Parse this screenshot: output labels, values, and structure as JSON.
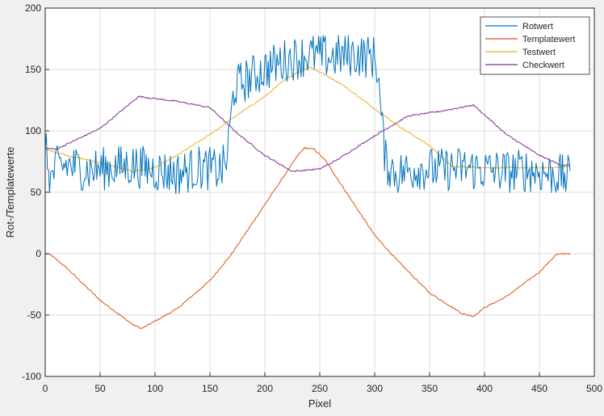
{
  "chart_data": {
    "type": "line",
    "title": "",
    "xlabel": "Pixel",
    "ylabel": "Rot-/Templatewerte",
    "xlim": [
      0,
      500
    ],
    "ylim": [
      -100,
      200
    ],
    "xticks": [
      0,
      50,
      100,
      150,
      200,
      250,
      300,
      350,
      400,
      450,
      500
    ],
    "yticks": [
      -100,
      -50,
      0,
      50,
      100,
      150,
      200
    ],
    "grid": true,
    "legend_position": "top-right",
    "series": [
      {
        "name": "Rotwert",
        "color": "#0072bd",
        "style": "noisy",
        "noise_amplitude": 18,
        "x": [
          0,
          5,
          10,
          20,
          40,
          60,
          80,
          100,
          120,
          140,
          160,
          165,
          168,
          172,
          180,
          200,
          220,
          240,
          260,
          280,
          300,
          303,
          306,
          310,
          320,
          340,
          360,
          380,
          400,
          420,
          440,
          460,
          478
        ],
        "y": [
          85,
          60,
          70,
          72,
          68,
          70,
          72,
          68,
          65,
          70,
          68,
          75,
          100,
          135,
          140,
          150,
          158,
          162,
          160,
          162,
          160,
          150,
          110,
          75,
          65,
          70,
          68,
          70,
          68,
          67,
          68,
          65,
          62
        ]
      },
      {
        "name": "Templatewert",
        "color": "#d95319",
        "style": "smooth",
        "x": [
          0,
          5,
          20,
          50,
          80,
          88,
          100,
          120,
          150,
          170,
          200,
          230,
          236,
          245,
          255,
          280,
          300,
          320,
          350,
          380,
          390,
          400,
          420,
          450,
          465,
          472,
          478
        ],
        "y": [
          0,
          -1,
          -12,
          -38,
          -58,
          -61,
          -55,
          -45,
          -22,
          0,
          40,
          80,
          86,
          85,
          76,
          42,
          15,
          -5,
          -32,
          -49,
          -51,
          -44,
          -35,
          -15,
          -1,
          0,
          0
        ]
      },
      {
        "name": "Testwert",
        "color": "#edb120",
        "style": "smooth",
        "x": [
          0,
          20,
          50,
          80,
          100,
          120,
          150,
          175,
          200,
          220,
          240,
          250,
          270,
          300,
          320,
          350,
          370,
          400,
          430,
          460,
          478
        ],
        "y": [
          85,
          80,
          74,
          67,
          70,
          80,
          97,
          113,
          128,
          143,
          152,
          148,
          138,
          118,
          105,
          88,
          71,
          70,
          70,
          70,
          71
        ]
      },
      {
        "name": "Checkwert",
        "color": "#7e2f8e",
        "style": "smooth",
        "x": [
          0,
          10,
          50,
          85,
          120,
          150,
          175,
          200,
          225,
          250,
          265,
          300,
          330,
          360,
          390,
          420,
          450,
          470,
          478
        ],
        "y": [
          86,
          85,
          102,
          128,
          124,
          119,
          98,
          80,
          67,
          69,
          76,
          96,
          112,
          116,
          121,
          97,
          80,
          72,
          72
        ]
      }
    ]
  }
}
